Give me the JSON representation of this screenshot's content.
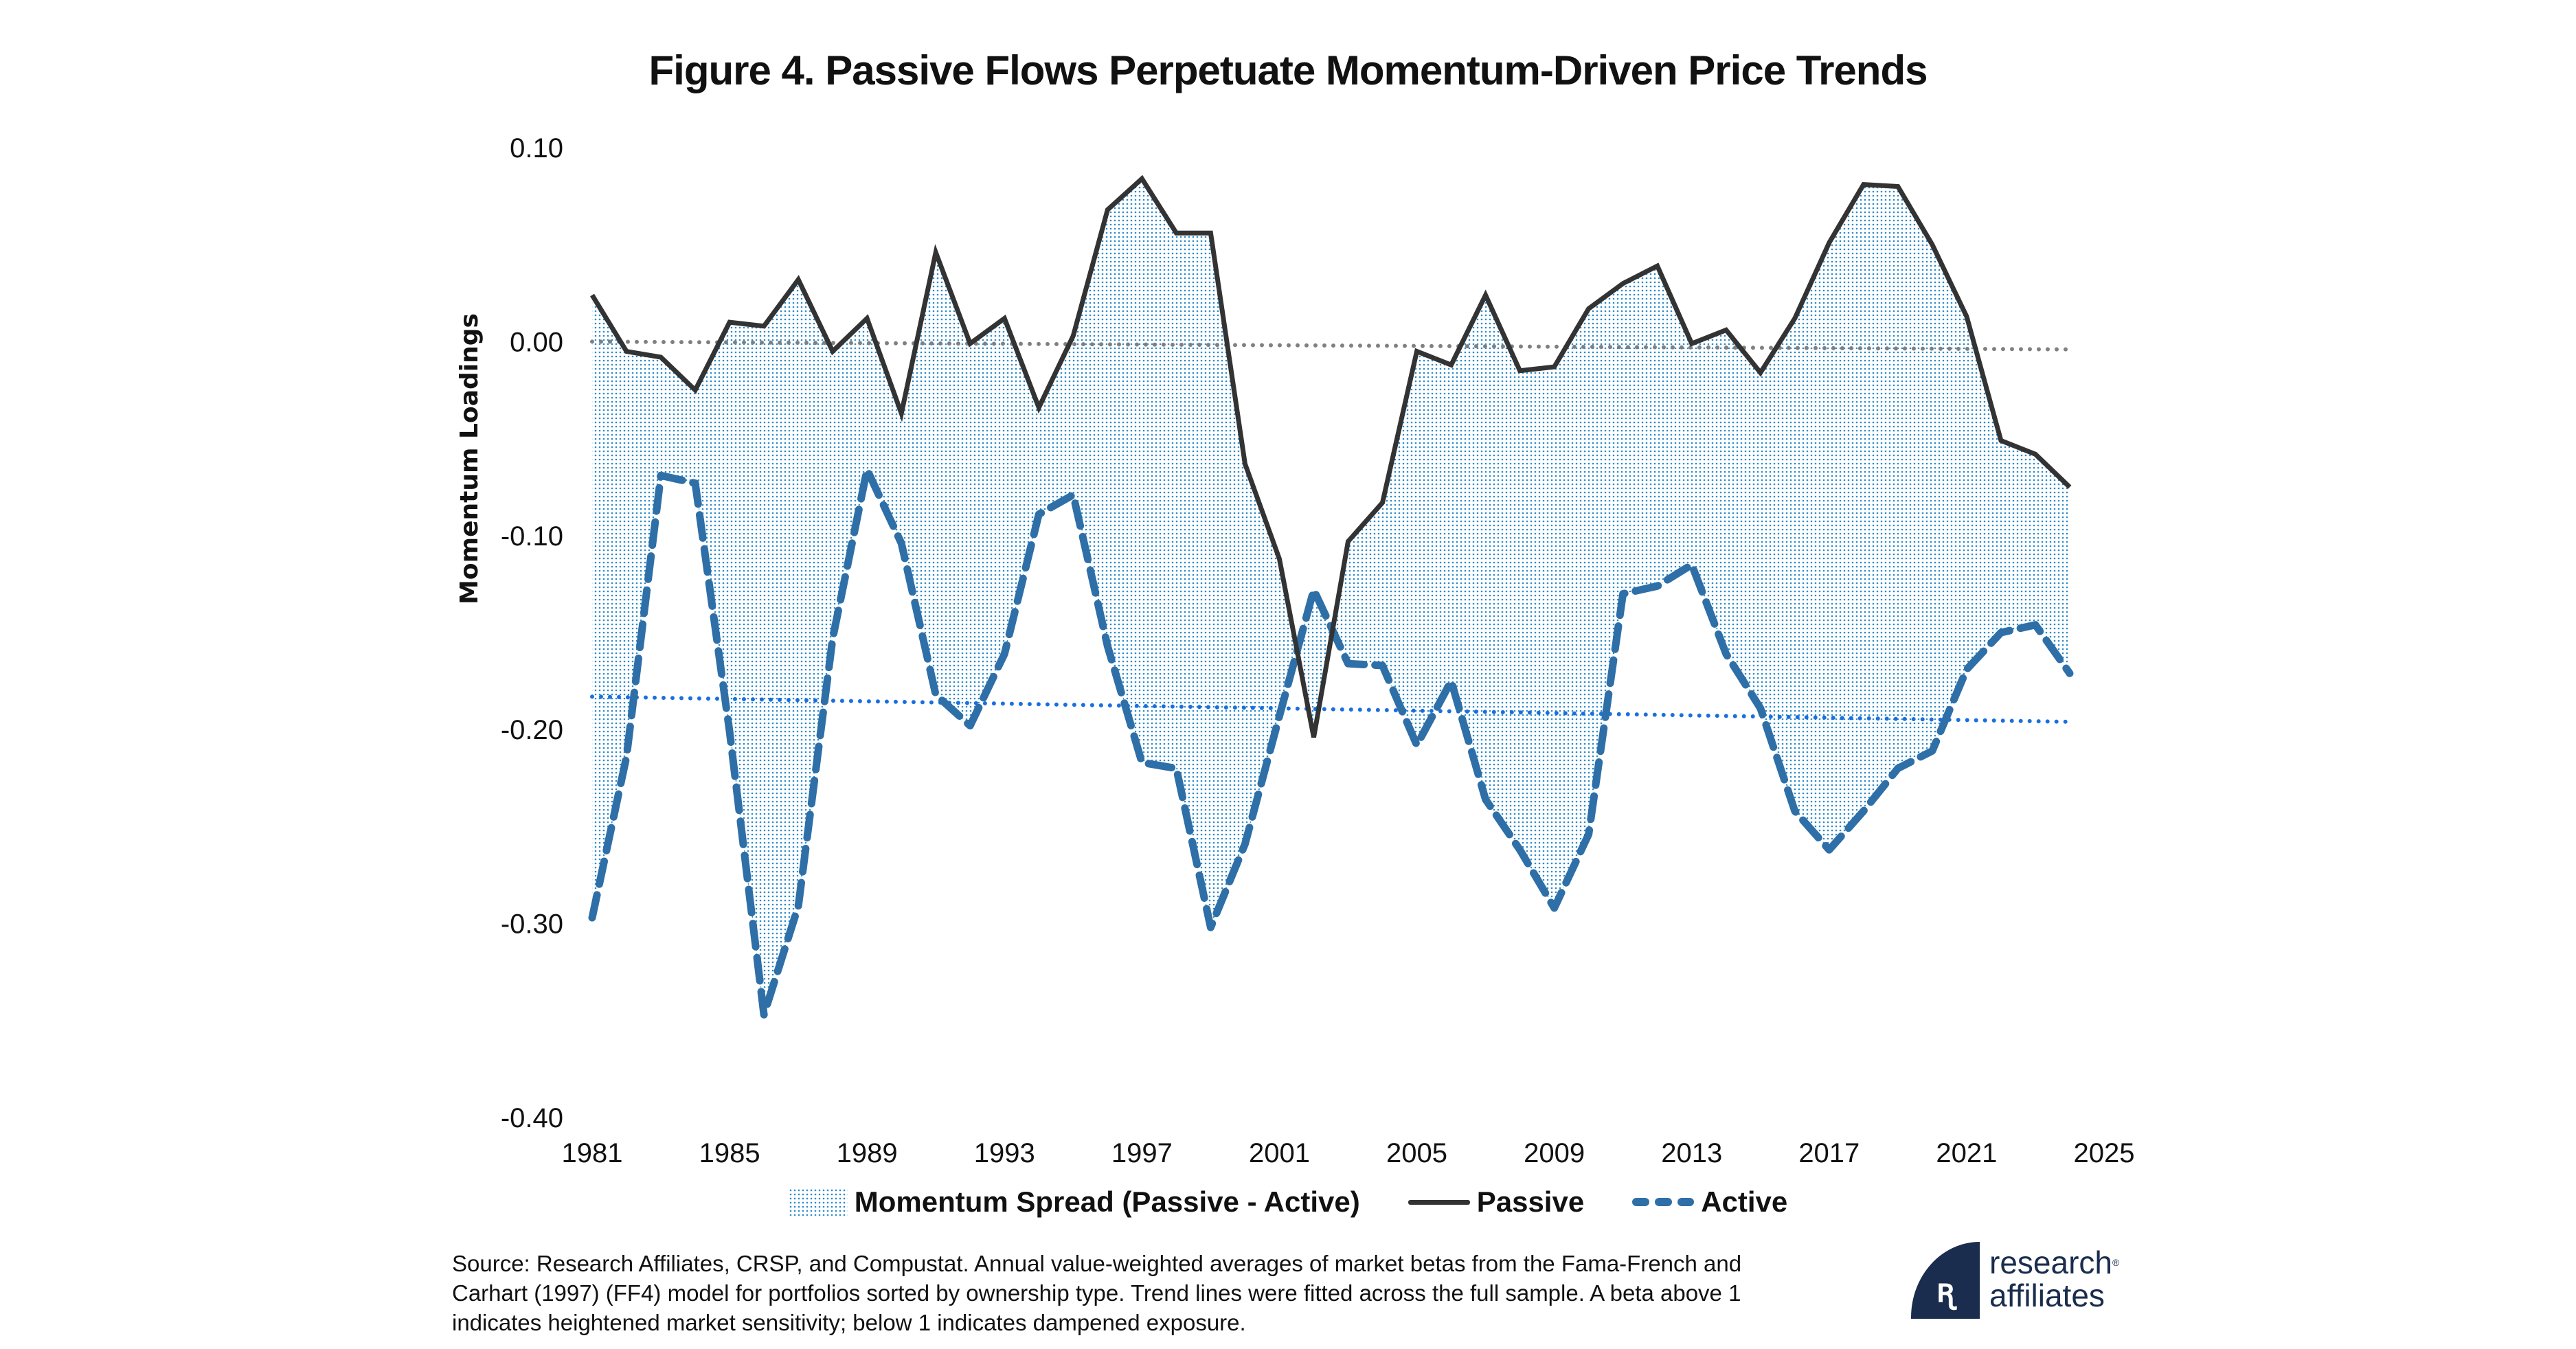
{
  "chart_data": {
    "type": "line",
    "title": "Figure 4. Passive Flows Perpetuate Momentum-Driven Price Trends",
    "xlabel": "",
    "ylabel": "Momentum Loadings",
    "xlim": [
      1981,
      2025
    ],
    "ylim": [
      -0.4,
      0.1
    ],
    "x_ticks": [
      "1981",
      "1985",
      "1989",
      "1993",
      "1997",
      "2001",
      "2005",
      "2009",
      "2013",
      "2017",
      "2021",
      "2025"
    ],
    "y_ticks": [
      "0.10",
      "0.00",
      "-0.10",
      "-0.20",
      "-0.30",
      "-0.40"
    ],
    "y_tick_values": [
      0.1,
      0.0,
      -0.1,
      -0.2,
      -0.3,
      -0.4
    ],
    "grid": false,
    "legend_position": "bottom",
    "x": [
      1981,
      1982,
      1983,
      1984,
      1985,
      1986,
      1987,
      1988,
      1989,
      1990,
      1991,
      1992,
      1993,
      1994,
      1995,
      1996,
      1997,
      1998,
      1999,
      2000,
      2001,
      2002,
      2003,
      2004,
      2005,
      2006,
      2007,
      2008,
      2009,
      2010,
      2011,
      2012,
      2013,
      2014,
      2015,
      2016,
      2017,
      2018,
      2019,
      2020,
      2021,
      2022,
      2023,
      2024
    ],
    "series": [
      {
        "name": "Passive",
        "style": "solid",
        "color": "#333333",
        "values": [
          0.024,
          -0.005,
          -0.008,
          -0.025,
          0.01,
          0.008,
          0.032,
          -0.005,
          0.012,
          -0.037,
          0.046,
          -0.001,
          0.012,
          -0.034,
          0.003,
          0.068,
          0.084,
          0.056,
          0.056,
          -0.063,
          -0.112,
          -0.204,
          -0.103,
          -0.083,
          -0.005,
          -0.012,
          0.024,
          -0.015,
          -0.013,
          0.017,
          0.03,
          0.039,
          -0.001,
          0.006,
          -0.016,
          0.012,
          0.051,
          0.081,
          0.08,
          0.05,
          0.013,
          -0.051,
          -0.058,
          -0.075
        ]
      },
      {
        "name": "Active",
        "style": "dashed",
        "color": "#2f6fa8",
        "values": [
          -0.297,
          -0.214,
          -0.069,
          -0.073,
          -0.201,
          -0.347,
          -0.291,
          -0.153,
          -0.066,
          -0.104,
          -0.182,
          -0.198,
          -0.161,
          -0.089,
          -0.079,
          -0.157,
          -0.217,
          -0.22,
          -0.302,
          -0.259,
          -0.193,
          -0.128,
          -0.166,
          -0.167,
          -0.208,
          -0.175,
          -0.236,
          -0.262,
          -0.292,
          -0.254,
          -0.13,
          -0.126,
          -0.115,
          -0.161,
          -0.189,
          -0.242,
          -0.262,
          -0.242,
          -0.22,
          -0.211,
          -0.169,
          -0.15,
          -0.146,
          -0.171
        ]
      }
    ],
    "area": {
      "name": "Momentum Spread (Passive - Active)",
      "between": [
        "Passive",
        "Active"
      ],
      "color": "#2a8ac8"
    },
    "trend_lines": [
      {
        "name": "Passive trend",
        "x": [
          1981,
          2024
        ],
        "y": [
          0.0,
          -0.004
        ],
        "color": "#808080",
        "style": "dotted"
      },
      {
        "name": "Active trend",
        "x": [
          1981,
          2024
        ],
        "y": [
          -0.183,
          -0.196
        ],
        "color": "#1a6fe0",
        "style": "dotted"
      }
    ]
  },
  "legend": {
    "spread_label": "Momentum Spread (Passive - Active)",
    "passive_label": "Passive",
    "active_label": "Active"
  },
  "footnote": "Source: Research Affiliates, CRSP, and Compustat. Annual value-weighted averages of market betas from the Fama-French and Carhart (1997) (FF4) model for portfolios sorted by ownership type. Trend lines were fitted across the full sample. A beta above 1 indicates heightened market sensitivity; below 1 indicates dampened exposure.",
  "logo": {
    "mark": "ꭆ",
    "line1": "research",
    "line2": "affiliates",
    "registered": "®"
  }
}
